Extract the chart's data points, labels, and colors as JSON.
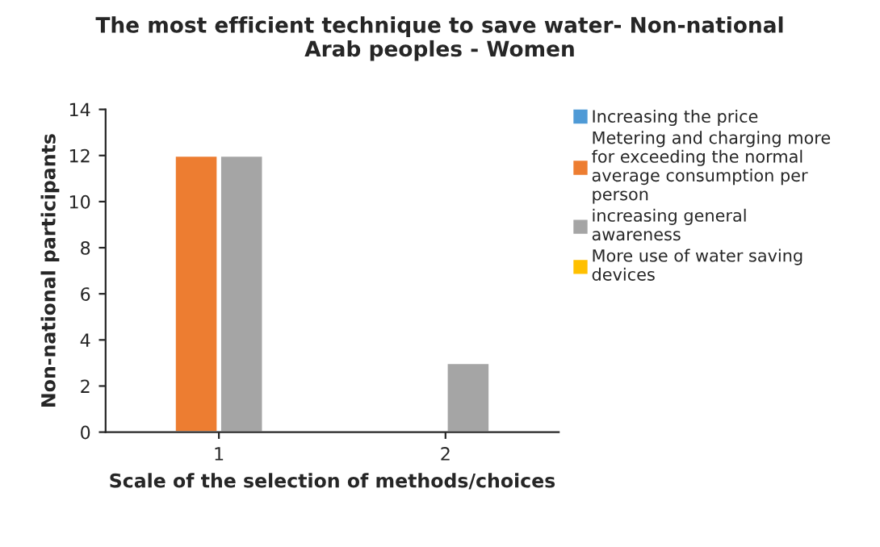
{
  "chart_data": {
    "type": "bar",
    "title": "The most efficient technique to save water- Non-national Arab peoples - Women",
    "xlabel": "Scale of the selection of methods/choices",
    "ylabel": "Non-national participants",
    "categories": [
      "1",
      "2"
    ],
    "series": [
      {
        "name": "Increasing the price",
        "color": "#4f9ad6",
        "values": [
          null,
          null
        ]
      },
      {
        "name": "Metering and charging more for exceeding the normal average consumption per person",
        "color": "#ed7d31",
        "values": [
          12,
          null
        ]
      },
      {
        "name": "increasing general awareness",
        "color": "#a5a5a5",
        "values": [
          12,
          3
        ]
      },
      {
        "name": "More use of water saving devices",
        "color": "#ffc000",
        "values": [
          null,
          null
        ]
      }
    ],
    "ylim": [
      0,
      14
    ],
    "yticks": [
      0,
      2,
      4,
      6,
      8,
      10,
      12,
      14
    ],
    "grid": false,
    "legend": "right"
  }
}
